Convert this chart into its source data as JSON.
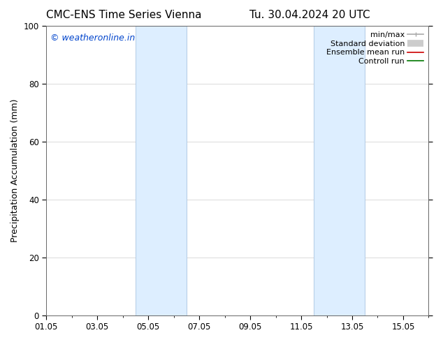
{
  "title_left": "CMC-ENS Time Series Vienna",
  "title_right": "Tu. 30.04.2024 20 UTC",
  "ylabel": "Precipitation Accumulation (mm)",
  "ylim": [
    0,
    100
  ],
  "yticks": [
    0,
    20,
    40,
    60,
    80,
    100
  ],
  "xtick_labels": [
    "01.05",
    "03.05",
    "05.05",
    "07.05",
    "09.05",
    "11.05",
    "13.05",
    "15.05"
  ],
  "xtick_positions_days": [
    0,
    2,
    4,
    6,
    8,
    10,
    12,
    14
  ],
  "total_days": 15,
  "shaded_bands": [
    {
      "xstart_day": 3.5,
      "xend_day": 5.5
    },
    {
      "xstart_day": 10.5,
      "xend_day": 12.5
    }
  ],
  "band_color": "#ddeeff",
  "band_edge_color": "#b8cfe8",
  "watermark_text": "© weatheronline.in",
  "watermark_color": "#0044cc",
  "watermark_fontsize": 9,
  "legend_items": [
    {
      "label": "min/max",
      "color": "#aaaaaa",
      "lw": 1.2,
      "style": "caps"
    },
    {
      "label": "Standard deviation",
      "color": "#cccccc",
      "lw": 7,
      "style": "thick"
    },
    {
      "label": "Ensemble mean run",
      "color": "#cc0000",
      "lw": 1.2,
      "style": "solid"
    },
    {
      "label": "Controll run",
      "color": "#007700",
      "lw": 1.2,
      "style": "solid"
    }
  ],
  "bg_color": "#ffffff",
  "grid_color": "#cccccc",
  "title_fontsize": 11,
  "label_fontsize": 9,
  "tick_fontsize": 8.5,
  "legend_fontsize": 8
}
